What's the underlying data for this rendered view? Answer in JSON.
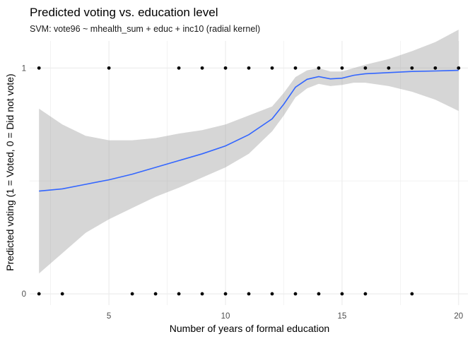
{
  "chart_data": {
    "type": "scatter",
    "title": "Predicted voting vs. education level",
    "subtitle": "SVM: vote96 ~ mhealth_sum + educ + inc10 (radial kernel)",
    "xlabel": "Number of years of formal education",
    "ylabel": "Predicted voting (1 = Voted, 0 = Did not vote)",
    "xlim": [
      1.6,
      20.4
    ],
    "ylim": [
      -0.05,
      1.12
    ],
    "x_ticks": [
      5,
      10,
      15,
      20
    ],
    "x_tick_labels": [
      "5",
      "10",
      "15",
      "20"
    ],
    "y_ticks": [
      0,
      1
    ],
    "y_tick_labels": [
      "0",
      "1"
    ],
    "grid": true,
    "legend": "none",
    "points": [
      {
        "x": 2,
        "y": 1
      },
      {
        "x": 5,
        "y": 1
      },
      {
        "x": 8,
        "y": 1
      },
      {
        "x": 9,
        "y": 1
      },
      {
        "x": 10,
        "y": 1
      },
      {
        "x": 11,
        "y": 1
      },
      {
        "x": 12,
        "y": 1
      },
      {
        "x": 13,
        "y": 1
      },
      {
        "x": 14,
        "y": 1
      },
      {
        "x": 15,
        "y": 1
      },
      {
        "x": 16,
        "y": 1
      },
      {
        "x": 17,
        "y": 1
      },
      {
        "x": 18,
        "y": 1
      },
      {
        "x": 19,
        "y": 1
      },
      {
        "x": 20,
        "y": 1
      },
      {
        "x": 2,
        "y": 0
      },
      {
        "x": 3,
        "y": 0
      },
      {
        "x": 6,
        "y": 0
      },
      {
        "x": 7,
        "y": 0
      },
      {
        "x": 8,
        "y": 0
      },
      {
        "x": 9,
        "y": 0
      },
      {
        "x": 10,
        "y": 0
      },
      {
        "x": 11,
        "y": 0
      },
      {
        "x": 12,
        "y": 0
      },
      {
        "x": 13,
        "y": 0
      },
      {
        "x": 14,
        "y": 0
      },
      {
        "x": 15,
        "y": 0
      },
      {
        "x": 16,
        "y": 0
      },
      {
        "x": 18,
        "y": 0
      }
    ],
    "smooth": {
      "x": [
        2,
        3,
        4,
        5,
        6,
        7,
        8,
        9,
        10,
        11,
        12,
        12.5,
        13,
        13.5,
        14,
        14.5,
        15,
        15.5,
        16,
        17,
        18,
        19,
        20
      ],
      "y": [
        0.455,
        0.465,
        0.485,
        0.505,
        0.53,
        0.56,
        0.59,
        0.62,
        0.655,
        0.705,
        0.775,
        0.84,
        0.915,
        0.95,
        0.962,
        0.952,
        0.955,
        0.968,
        0.975,
        0.98,
        0.985,
        0.987,
        0.99
      ],
      "lower": [
        0.09,
        0.18,
        0.27,
        0.33,
        0.38,
        0.43,
        0.47,
        0.515,
        0.56,
        0.62,
        0.72,
        0.79,
        0.87,
        0.91,
        0.93,
        0.92,
        0.925,
        0.935,
        0.935,
        0.92,
        0.895,
        0.86,
        0.81
      ],
      "upper": [
        0.82,
        0.75,
        0.7,
        0.68,
        0.68,
        0.69,
        0.71,
        0.725,
        0.75,
        0.79,
        0.83,
        0.89,
        0.96,
        0.99,
        1.0,
        0.985,
        0.985,
        1.0,
        1.015,
        1.04,
        1.075,
        1.115,
        1.17
      ]
    },
    "colors": {
      "line": "#3366FF",
      "ribbon": "#999999",
      "points": "#000000",
      "grid": "#EBEBEB"
    }
  }
}
